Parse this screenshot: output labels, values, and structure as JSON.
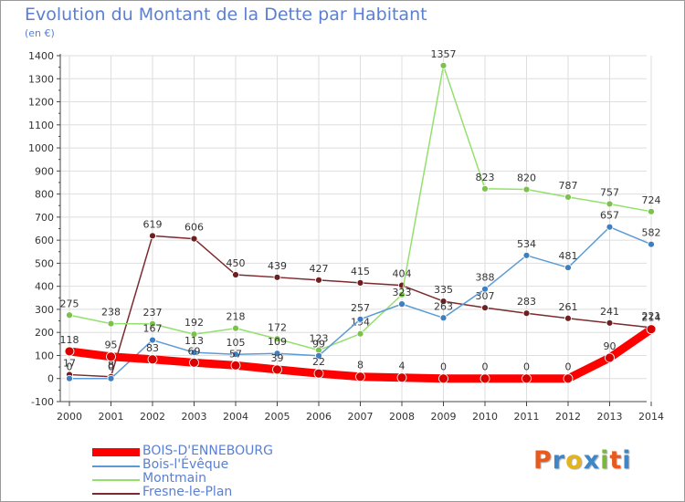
{
  "title": "Evolution du Montant de la Dette par Habitant",
  "unit": "(en €)",
  "logo": {
    "text": "Proxiti",
    "letter_colors": [
      "#e85a1c",
      "#3e86c8",
      "#e5b31a",
      "#3e86c8",
      "#7ab83b",
      "#e85a1c",
      "#3e86c8"
    ]
  },
  "chart_data": {
    "type": "line",
    "title": "Evolution du Montant de la Dette par Habitant",
    "ylabel": "(en €)",
    "xlabel": "",
    "x": [
      "2000",
      "2001",
      "2002",
      "2003",
      "2004",
      "2005",
      "2006",
      "2007",
      "2008",
      "2009",
      "2010",
      "2011",
      "2012",
      "2013",
      "2014"
    ],
    "ylim": [
      -100,
      1400
    ],
    "yticks": [
      "-100",
      "0",
      "100",
      "200",
      "300",
      "400",
      "500",
      "600",
      "700",
      "800",
      "900",
      "1000",
      "1100",
      "1200",
      "1300",
      "1400"
    ],
    "grid": true,
    "legend": "bottom-left",
    "series": [
      {
        "name": "Fresne-le-Plan",
        "color": "#7b2a2e",
        "marker": "#6e1f22",
        "values": [
          17,
          8,
          619,
          606,
          450,
          439,
          427,
          415,
          404,
          335,
          307,
          283,
          261,
          241,
          221
        ],
        "labels": [
          "17",
          "8",
          "619",
          "606",
          "450",
          "439",
          "427",
          "415",
          "404",
          "335",
          "307",
          "283",
          "261",
          "241",
          "221"
        ]
      },
      {
        "name": "Montmain",
        "color": "#94e06c",
        "marker": "#7ac24a",
        "values": [
          275,
          238,
          237,
          192,
          218,
          172,
          123,
          194,
          364,
          1357,
          823,
          820,
          787,
          757,
          724
        ],
        "labels": [
          "275",
          "238",
          "237",
          "192",
          "218",
          "172",
          "123",
          "194",
          "",
          "1357",
          "823",
          "820",
          "787",
          "757",
          "724"
        ]
      },
      {
        "name": "Bois-l'Évêque",
        "color": "#5b9bd5",
        "marker": "#3e7fc1",
        "values": [
          0,
          0,
          167,
          113,
          105,
          109,
          99,
          257,
          323,
          263,
          388,
          534,
          481,
          657,
          582
        ],
        "labels": [
          "0",
          "0",
          "167",
          "113",
          "105",
          "109",
          "99",
          "257",
          "323",
          "263",
          "388",
          "534",
          "481",
          "657",
          "582"
        ]
      },
      {
        "name": "BOIS-D'ENNEBOURG",
        "color": "#ff0000",
        "marker": "#d80000",
        "values": [
          118,
          95,
          83,
          69,
          57,
          39,
          22,
          8,
          4,
          0,
          0,
          0,
          0,
          90,
          214
        ],
        "labels": [
          "118",
          "95",
          "83",
          "69",
          "57",
          "39",
          "22",
          "8",
          "4",
          "0",
          "0",
          "0",
          "0",
          "90",
          "214"
        ]
      }
    ],
    "legend_items": [
      {
        "name": "BOIS-D'ENNEBOURG",
        "color": "#ff0000",
        "thick": true
      },
      {
        "name": "Bois-l'Évêque",
        "color": "#5b9bd5",
        "thick": false
      },
      {
        "name": "Montmain",
        "color": "#94e06c",
        "thick": false
      },
      {
        "name": "Fresne-le-Plan",
        "color": "#7b2a2e",
        "thick": false
      }
    ]
  }
}
